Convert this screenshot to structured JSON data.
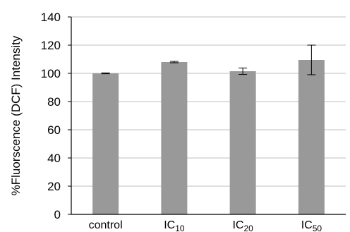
{
  "chart_data": {
    "type": "bar",
    "title": "",
    "xlabel": "",
    "ylabel": "%Fluorscence (DCF) Intensity",
    "ylim": [
      0,
      140
    ],
    "yticks": [
      0,
      20,
      40,
      60,
      80,
      100,
      120,
      140
    ],
    "grid": true,
    "categories": [
      {
        "main": "control",
        "sub": ""
      },
      {
        "main": "IC",
        "sub": "10"
      },
      {
        "main": "IC",
        "sub": "20"
      },
      {
        "main": "IC",
        "sub": "50"
      }
    ],
    "values": [
      100,
      108,
      101.5,
      109.5
    ],
    "errors": [
      0.3,
      0.5,
      2.3,
      10.5
    ],
    "bar_color": "#999999",
    "grid_color": "#bfbfbf"
  }
}
